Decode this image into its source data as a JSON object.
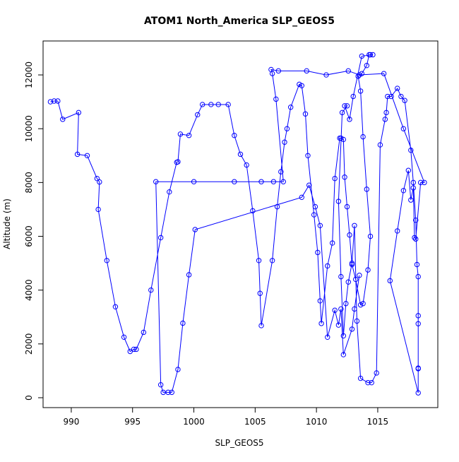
{
  "chart_data": {
    "type": "line",
    "markers": "circle",
    "title": "ATOM1 North_America SLP_GEOS5",
    "x_label": "SLP_GEOS5",
    "y_label": "Altitude (m)",
    "xlim": [
      987.7,
      1019.9
    ],
    "ylim": [
      -368,
      13262
    ],
    "xticks": [
      990,
      995,
      1000,
      1005,
      1010,
      1015
    ],
    "yticks": [
      0,
      2000,
      4000,
      6000,
      8000,
      10000,
      12000
    ],
    "series": [
      {
        "color": "#0000ff",
        "x": [
          988.3,
          988.6,
          988.9,
          989.3,
          990.6,
          990.5,
          991.3,
          992.1,
          992.3,
          992.2,
          992.9,
          993.6,
          994.3,
          994.8,
          995.1,
          995.3,
          995.9,
          996.5,
          997.3,
          998.0,
          998.6,
          998.7,
          998.9,
          999.6,
          1000.3,
          1000.7,
          1001.4,
          1002.0,
          1002.8,
          1003.3,
          1003.8,
          1004.3,
          1004.8,
          1005.3,
          1005.4,
          1005.5,
          1006.4,
          1006.8,
          1007.1,
          1007.4,
          1007.6,
          1007.9,
          1008.6,
          1008.8,
          1009.1,
          1009.3,
          1009.8,
          1010.1,
          1010.3,
          1010.4,
          1010.9,
          1011.3,
          1011.5,
          1011.9,
          1012.0,
          1012.2,
          1012.3,
          1012.5,
          1012.7,
          1012.9,
          1013.2,
          1013.6,
          1013.8,
          1014.2,
          1014.4,
          1014.1,
          1013.8,
          1013.6,
          1013.4,
          1013.7,
          1014.1,
          1014.3,
          1014.4,
          1014.6,
          1013.7,
          1013.0,
          1012.7,
          1012.3,
          1012.5,
          1012.1,
          1011.8,
          1012.0,
          1012.2,
          1012.4,
          1012.6,
          1012.9,
          1013.1,
          1013.3,
          1013.6,
          1014.2,
          1014.5,
          1014.9,
          1015.2,
          1015.6,
          1015.7,
          1015.8,
          1016.1,
          1016.6,
          1016.9,
          1017.2,
          1017.7,
          1017.9,
          1018.1,
          1018.2,
          1018.3,
          1018.3,
          1018.3,
          1018.3,
          1018.3,
          1018.3,
          1016.0,
          1016.6,
          1017.1,
          1017.5,
          1017.7,
          1017.9,
          1018.0,
          1018.1,
          1018.5,
          1018.8,
          1017.1,
          1015.5,
          1013.5,
          1012.6,
          1010.8,
          1009.2,
          1006.9,
          1006.3,
          1006.4,
          1006.7,
          1007.3,
          1006.5,
          1005.5,
          1003.3,
          1000.0,
          996.9,
          997.3,
          997.5,
          997.9,
          998.2,
          998.7,
          999.1,
          999.6,
          1000.1,
          1008.8,
          1009.4,
          1009.9,
          1010.3,
          1010.9,
          1011.5,
          1011.8,
          1012.0,
          1012.2,
          1012.9,
          1013.1,
          1013.5
        ],
        "values": [
          11000,
          11030,
          11030,
          10350,
          10600,
          9050,
          9000,
          8150,
          8020,
          7000,
          5100,
          3380,
          2250,
          1720,
          1800,
          1800,
          2430,
          4000,
          5950,
          7650,
          8750,
          8770,
          9800,
          9750,
          10520,
          10900,
          10900,
          10900,
          10900,
          9750,
          9050,
          8650,
          6950,
          5100,
          3880,
          2680,
          5100,
          7100,
          8400,
          9500,
          10000,
          10800,
          11650,
          11600,
          10550,
          9000,
          6800,
          5400,
          3600,
          2760,
          4900,
          5750,
          8150,
          9650,
          9650,
          9600,
          8200,
          7100,
          6050,
          4950,
          4400,
          3450,
          3500,
          4750,
          6000,
          7750,
          9700,
          11400,
          11950,
          12050,
          12350,
          12750,
          12750,
          12750,
          12700,
          11200,
          10350,
          10850,
          10850,
          10600,
          7300,
          4500,
          2300,
          3500,
          4300,
          5000,
          6400,
          2850,
          720,
          560,
          560,
          920,
          9400,
          10350,
          10600,
          11200,
          11200,
          11500,
          11200,
          11050,
          9200,
          8000,
          6600,
          4950,
          4500,
          3050,
          2750,
          1100,
          1080,
          180,
          4350,
          6200,
          7700,
          8450,
          7350,
          7800,
          5950,
          5900,
          8000,
          8000,
          10000,
          12050,
          12000,
          12150,
          12000,
          12150,
          12150,
          12200,
          12050,
          11100,
          8030,
          8030,
          8030,
          8030,
          8030,
          8030,
          480,
          200,
          200,
          200,
          1050,
          2770,
          4570,
          6250,
          7450,
          7900,
          7100,
          6400,
          2250,
          3250,
          2700,
          3300,
          1600,
          2550,
          3300,
          4550
        ]
      }
    ]
  }
}
